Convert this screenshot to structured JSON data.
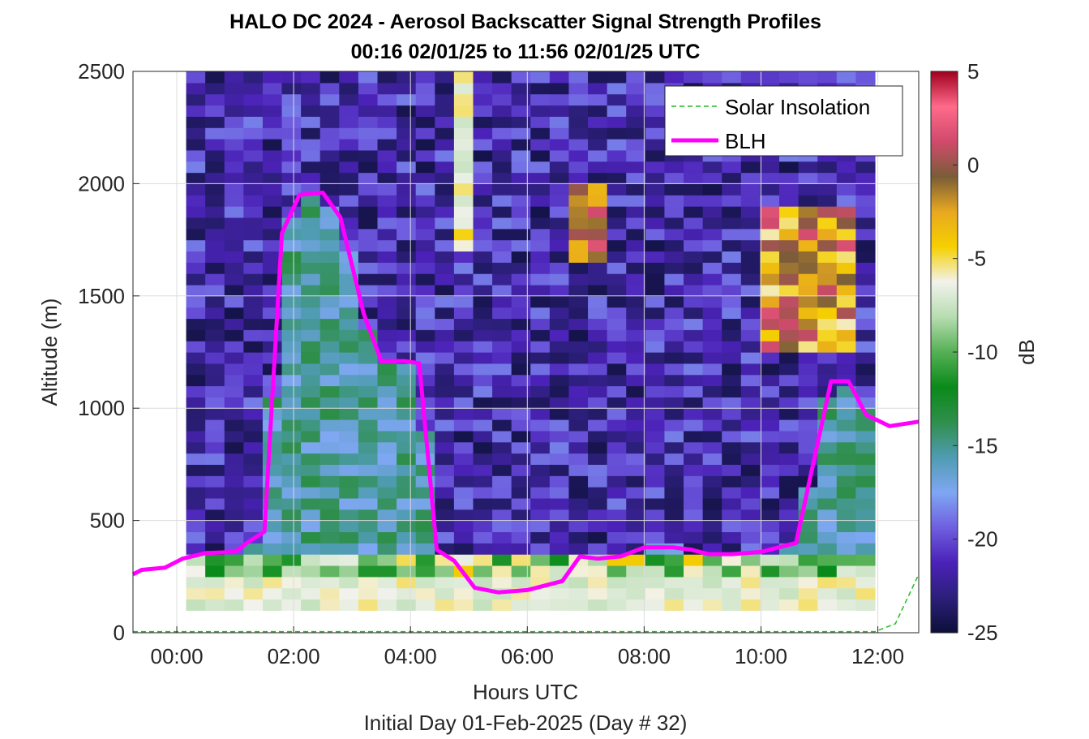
{
  "chart_data": {
    "type": "heatmap",
    "title": "HALO DC 2024 - Aerosol Backscatter Signal Strength Profiles",
    "subtitle": "00:16 02/01/25 to 11:56 02/01/25  UTC",
    "xlabel": "Hours UTC",
    "xlabel2": "Initial Day 01-Feb-2025 (Day # 32)",
    "ylabel": "Altitude (m)",
    "xlim": [
      -0.75,
      12.7
    ],
    "ylim": [
      0,
      2500
    ],
    "x_ticks": [
      0,
      2,
      4,
      6,
      8,
      10,
      12
    ],
    "x_tick_labels": [
      "00:00",
      "02:00",
      "04:00",
      "06:00",
      "08:00",
      "10:00",
      "12:00"
    ],
    "y_ticks": [
      0,
      500,
      1000,
      1500,
      2000,
      2500
    ],
    "y_tick_labels": [
      "0",
      "500",
      "1000",
      "1500",
      "2000",
      "2500"
    ],
    "grid": true,
    "legend_position": "top-right",
    "colorbar": {
      "label": "dB",
      "range": [
        -25,
        5
      ],
      "ticks": [
        5,
        0,
        -5,
        -10,
        -15,
        -20,
        -25
      ],
      "tick_labels": [
        "5",
        "0",
        "-5",
        "-10",
        "-15",
        "-20",
        "-25"
      ],
      "colormap": [
        "#0d0f3a",
        "#2c1f7a",
        "#4b22b8",
        "#6f5fe0",
        "#7fa7f2",
        "#4f9cb2",
        "#2f8f4c",
        "#0a8a1a",
        "#55b055",
        "#b7ddb0",
        "#f2f2ec",
        "#f5d000",
        "#e8a820",
        "#7a5d38",
        "#d04a6c",
        "#ff6a8a",
        "#a1001e"
      ]
    },
    "heatmap": {
      "x_start": 0.16,
      "x_end": 11.95,
      "y_start": 100,
      "y_end": 2500,
      "n_time": 36,
      "n_alt": 48,
      "description_values": "dB backscatter profile: surface layer -5 to -8 dB below ~350 m; mixed layer -14 to -18 dB; free troposphere -20 to -25 dB; elevated layers near 1700-2000 m around 07:00 and 10:30-11:30"
    },
    "series": [
      {
        "name": "Solar Insolation",
        "color": "#22bb22",
        "style": "dashed",
        "x": [
          -0.75,
          11.95,
          12.3,
          12.7
        ],
        "y": [
          5,
          5,
          40,
          260
        ]
      },
      {
        "name": "BLH",
        "color": "#ff00ff",
        "style": "solid",
        "x": [
          -0.75,
          -0.6,
          -0.2,
          0.1,
          0.5,
          1.0,
          1.2,
          1.5,
          1.8,
          2.1,
          2.5,
          2.8,
          3.2,
          3.5,
          3.9,
          4.15,
          4.45,
          4.75,
          5.1,
          5.5,
          6.0,
          6.6,
          6.9,
          7.2,
          7.6,
          8.0,
          8.5,
          8.8,
          9.1,
          9.5,
          10.0,
          10.3,
          10.6,
          11.2,
          11.5,
          11.8,
          12.2,
          12.7
        ],
        "y": [
          260,
          280,
          290,
          330,
          355,
          360,
          400,
          450,
          1780,
          1950,
          1960,
          1850,
          1420,
          1210,
          1210,
          1200,
          370,
          320,
          200,
          180,
          190,
          230,
          340,
          330,
          340,
          380,
          380,
          370,
          350,
          350,
          360,
          380,
          400,
          1120,
          1120,
          970,
          920,
          940
        ]
      }
    ],
    "legend": [
      "Solar Insolation",
      "BLH"
    ],
    "colors": {
      "blh": "#ff00ff",
      "solar": "#22bb22",
      "grid": "#dcdcdc"
    }
  }
}
